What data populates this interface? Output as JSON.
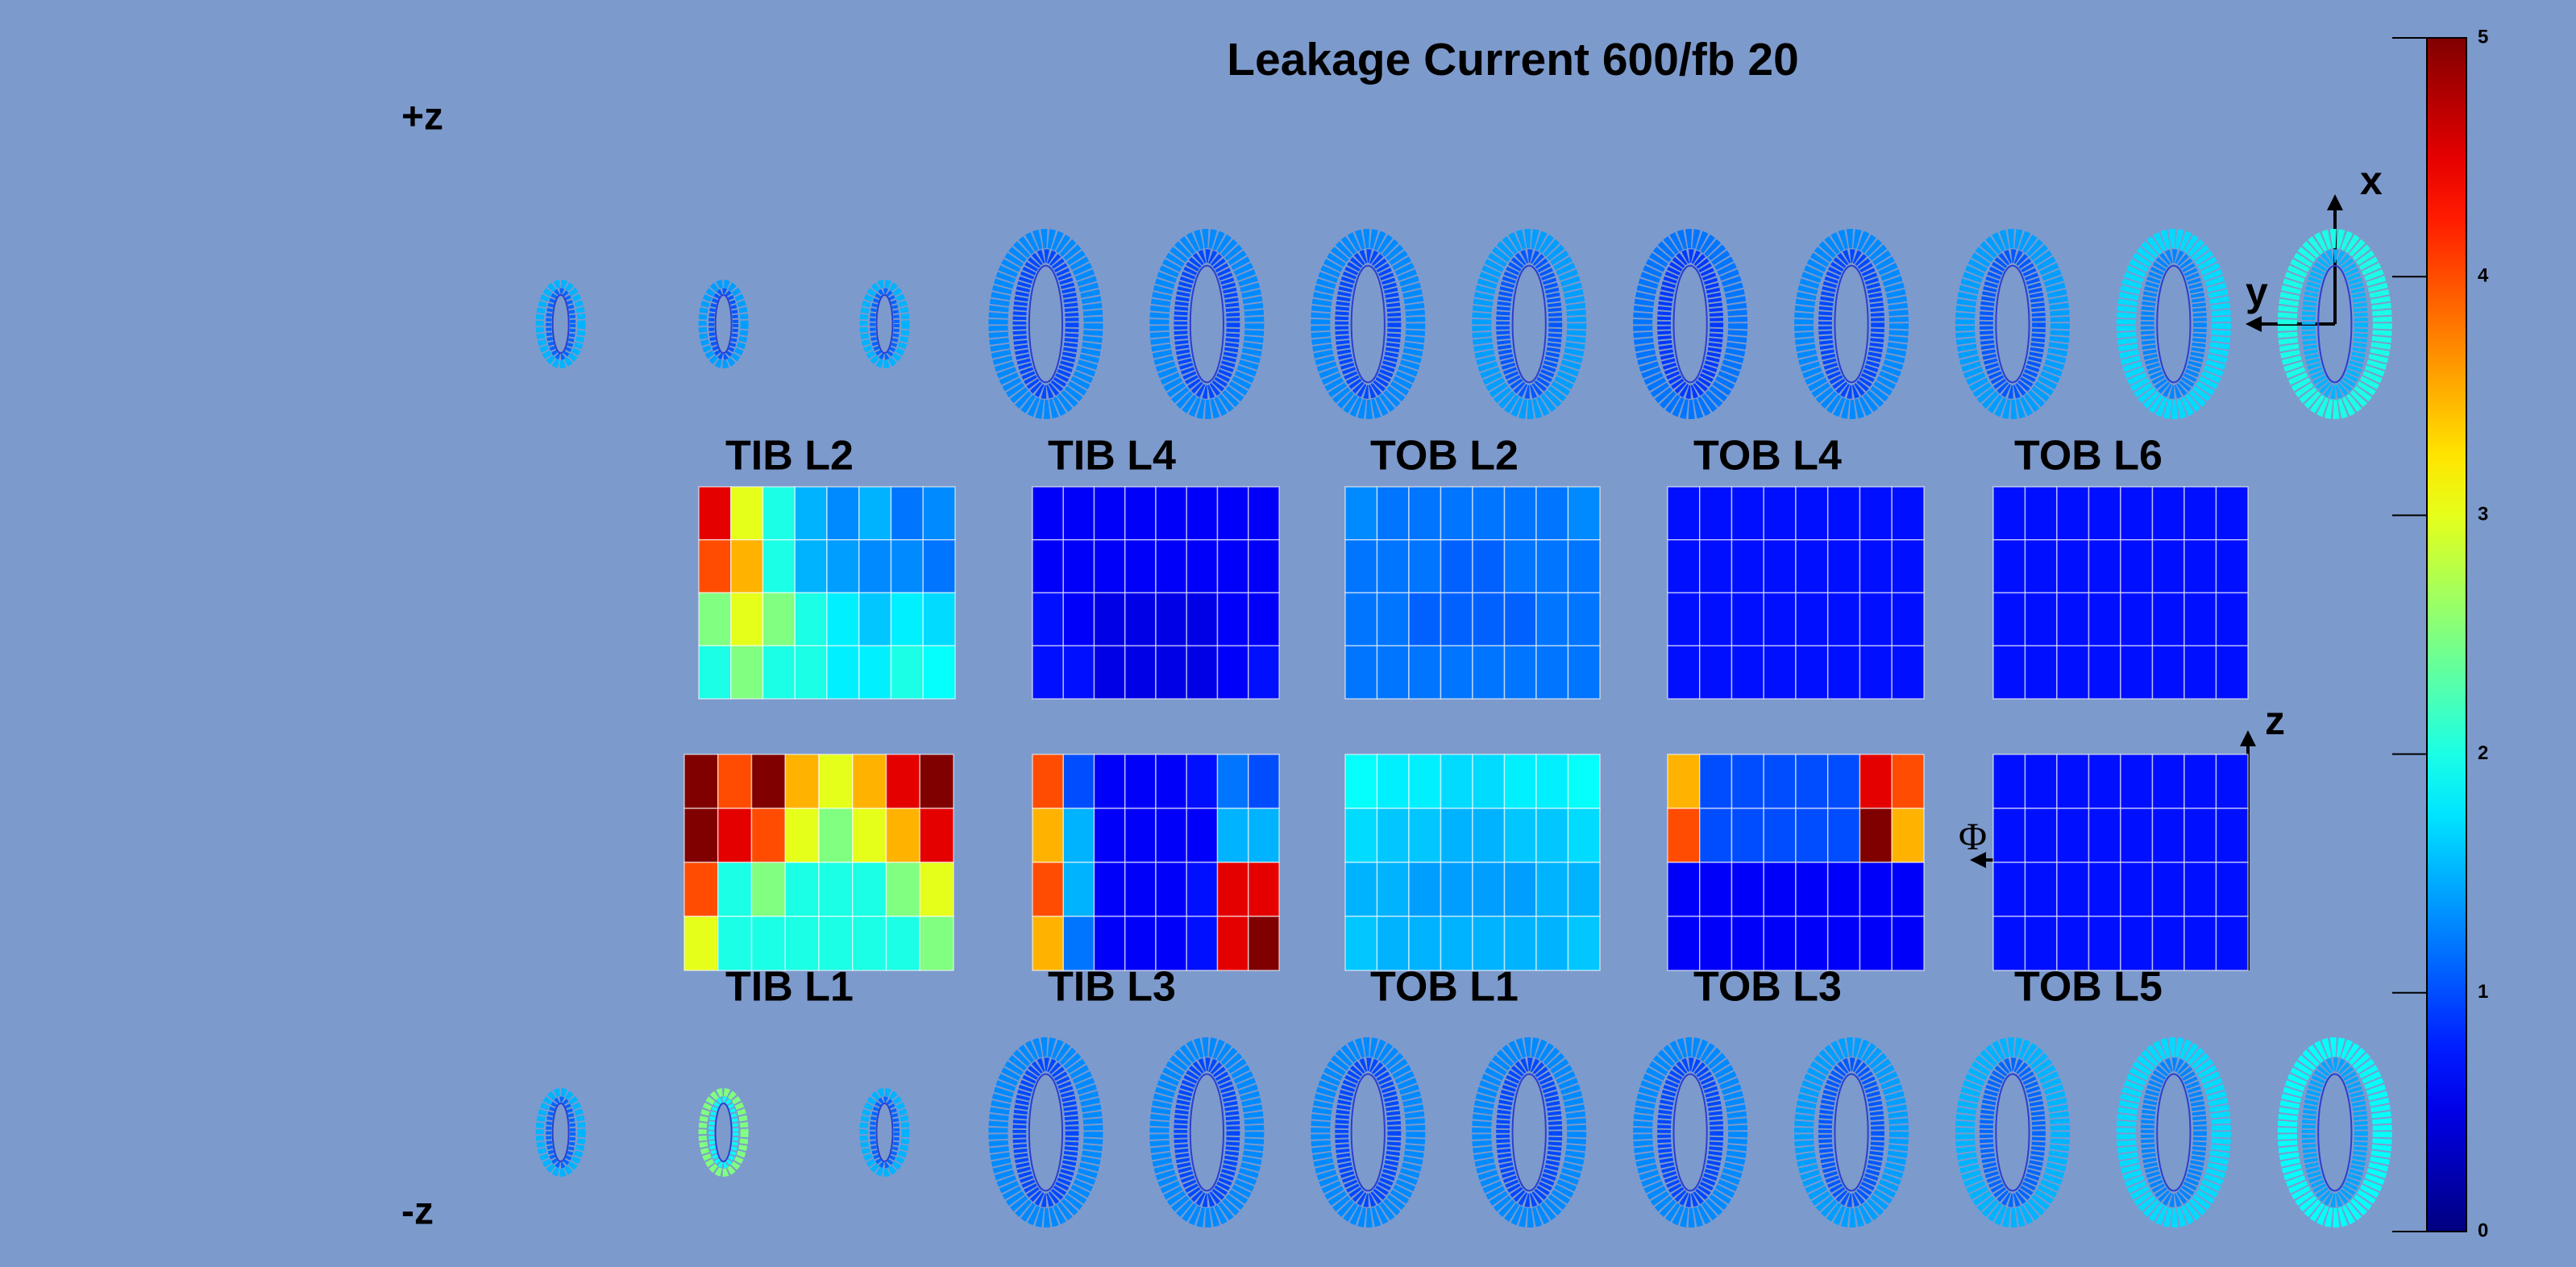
{
  "chart_data": {
    "type": "detector-map",
    "title": "Leakage Current 600/fb 20",
    "labels": {
      "plus_z": "+z",
      "minus_z": "-z",
      "x": "x",
      "y": "y",
      "z": "z",
      "phi": "Φ"
    },
    "colorbar": {
      "zlim": [
        0,
        5
      ],
      "ticks": [
        0,
        1,
        2,
        3,
        4,
        5
      ]
    },
    "rings": {
      "top": [
        1.5,
        1.4,
        1.5,
        1.3,
        1.3,
        1.3,
        1.4,
        1.2,
        1.3,
        1.4,
        1.7,
        2.0
      ],
      "bottom": [
        1.5,
        2.5,
        1.5,
        1.3,
        1.3,
        1.3,
        1.3,
        1.3,
        1.4,
        1.5,
        1.7,
        1.9
      ]
    },
    "panels": [
      {
        "name": "TIB L2",
        "values": [
          [
            4.5,
            3,
            2,
            1.5,
            1.3,
            1.5,
            1.2,
            1.3
          ],
          [
            4,
            3.5,
            2,
            1.5,
            1.4,
            1.3,
            1.3,
            1.2
          ],
          [
            2.5,
            3,
            2.5,
            2,
            1.8,
            1.6,
            1.8,
            1.7
          ],
          [
            2,
            2.5,
            2,
            2,
            1.8,
            1.8,
            2,
            1.9
          ]
        ]
      },
      {
        "name": "TIB L4",
        "values": [
          [
            0.6,
            0.6,
            0.6,
            0.6,
            0.6,
            0.6,
            0.6,
            0.6
          ],
          [
            0.6,
            0.6,
            0.6,
            0.6,
            0.6,
            0.6,
            0.6,
            0.6
          ],
          [
            0.7,
            0.6,
            0.5,
            0.5,
            0.5,
            0.5,
            0.6,
            0.6
          ],
          [
            0.7,
            0.7,
            0.5,
            0.5,
            0.5,
            0.5,
            0.6,
            0.7
          ]
        ]
      },
      {
        "name": "TOB L2",
        "values": [
          [
            1.3,
            1.2,
            1.2,
            1.2,
            1.2,
            1.2,
            1.2,
            1.3
          ],
          [
            1.2,
            1.2,
            1.2,
            1.1,
            1.1,
            1.2,
            1.2,
            1.2
          ],
          [
            1.2,
            1.2,
            1.1,
            1.1,
            1.1,
            1.1,
            1.2,
            1.2
          ],
          [
            1.2,
            1.2,
            1.2,
            1.2,
            1.2,
            1.2,
            1.2,
            1.2
          ]
        ]
      },
      {
        "name": "TOB L4",
        "values": [
          [
            0.7,
            0.7,
            0.7,
            0.7,
            0.7,
            0.7,
            0.7,
            0.7
          ],
          [
            0.7,
            0.7,
            0.7,
            0.7,
            0.7,
            0.7,
            0.7,
            0.7
          ],
          [
            0.7,
            0.7,
            0.7,
            0.7,
            0.7,
            0.7,
            0.7,
            0.7
          ],
          [
            0.7,
            0.7,
            0.7,
            0.7,
            0.7,
            0.7,
            0.7,
            0.7
          ]
        ]
      },
      {
        "name": "TOB L6",
        "values": [
          [
            0.7,
            0.7,
            0.7,
            0.7,
            0.7,
            0.7,
            0.7,
            0.7
          ],
          [
            0.7,
            0.7,
            0.7,
            0.7,
            0.7,
            0.7,
            0.7,
            0.7
          ],
          [
            0.7,
            0.7,
            0.7,
            0.7,
            0.7,
            0.7,
            0.7,
            0.7
          ],
          [
            0.7,
            0.7,
            0.7,
            0.7,
            0.7,
            0.7,
            0.7,
            0.7
          ]
        ]
      },
      {
        "name": "TIB L1",
        "values": [
          [
            5,
            4,
            5,
            3.5,
            3,
            3.5,
            4.5,
            5
          ],
          [
            5,
            4.5,
            4,
            3,
            2.5,
            3,
            3.5,
            4.5
          ],
          [
            4,
            2,
            2.5,
            2,
            2,
            2,
            2.5,
            3
          ],
          [
            3,
            2,
            2,
            2,
            2,
            2,
            2,
            2.5
          ]
        ]
      },
      {
        "name": "TIB L3",
        "values": [
          [
            4,
            1,
            0.6,
            0.6,
            0.6,
            0.7,
            1.2,
            1
          ],
          [
            3.5,
            1.5,
            0.6,
            0.6,
            0.6,
            0.6,
            1.5,
            1.5
          ],
          [
            4,
            1.5,
            0.6,
            0.6,
            0.6,
            0.7,
            4.5,
            4.5
          ],
          [
            3.5,
            1.2,
            0.6,
            0.6,
            0.6,
            0.7,
            4.5,
            5
          ]
        ]
      },
      {
        "name": "TOB L1",
        "values": [
          [
            1.9,
            1.8,
            1.8,
            1.7,
            1.7,
            1.8,
            1.8,
            1.9
          ],
          [
            1.7,
            1.6,
            1.6,
            1.5,
            1.5,
            1.6,
            1.6,
            1.7
          ],
          [
            1.5,
            1.5,
            1.4,
            1.4,
            1.4,
            1.4,
            1.5,
            1.5
          ],
          [
            1.6,
            1.5,
            1.5,
            1.5,
            1.5,
            1.5,
            1.5,
            1.6
          ]
        ]
      },
      {
        "name": "TOB L3",
        "values": [
          [
            3.5,
            1,
            1,
            1,
            1,
            1,
            4.5,
            4
          ],
          [
            4,
            1,
            1,
            1,
            1,
            1,
            5,
            3.5
          ],
          [
            0.6,
            0.6,
            0.6,
            0.6,
            0.6,
            0.6,
            0.6,
            0.6
          ],
          [
            0.6,
            0.6,
            0.6,
            0.6,
            0.6,
            0.6,
            0.6,
            0.6
          ]
        ]
      },
      {
        "name": "TOB L5",
        "values": [
          [
            0.7,
            0.7,
            0.7,
            0.7,
            0.7,
            0.7,
            0.7,
            0.7
          ],
          [
            0.7,
            0.7,
            0.7,
            0.7,
            0.7,
            0.7,
            0.7,
            0.7
          ],
          [
            0.7,
            0.7,
            0.7,
            0.7,
            0.7,
            0.7,
            0.7,
            0.7
          ],
          [
            0.7,
            0.7,
            0.7,
            0.7,
            0.7,
            0.7,
            0.7,
            0.7
          ]
        ]
      }
    ]
  }
}
